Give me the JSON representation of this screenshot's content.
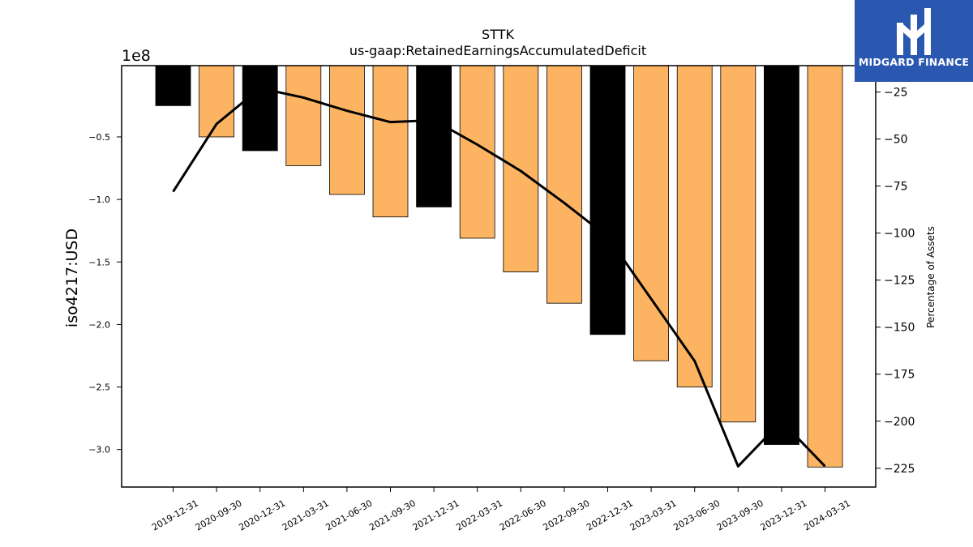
{
  "brand": {
    "name": "MIDGARD FINANCE",
    "logo_icon": "midgard-logo-icon",
    "background": "#2a58b0"
  },
  "chart_data": {
    "type": "bar",
    "title": "STTK",
    "subtitle": "us-gaap:RetainedEarningsAccumulatedDeficit",
    "ylabel": "iso4217:USD",
    "y_scale_label": "1e8",
    "y2label": "Percentage of Assets",
    "categories": [
      "2019-12-31",
      "2020-09-30",
      "2020-12-31",
      "2021-03-31",
      "2021-06-30",
      "2021-09-30",
      "2021-12-31",
      "2022-03-31",
      "2022-06-30",
      "2022-09-30",
      "2022-12-31",
      "2023-03-31",
      "2023-06-30",
      "2023-09-30",
      "2023-12-31",
      "2024-03-31"
    ],
    "values": [
      -25000000,
      -50000000,
      -61000000,
      -73000000,
      -96000000,
      -114000000,
      -106000000,
      -131000000,
      -158000000,
      -183000000,
      -208000000,
      -229000000,
      -250000000,
      -278000000,
      -296000000,
      -314000000
    ],
    "bar_colors": [
      "#000000",
      "#fdb462",
      "#000000",
      "#fdb462",
      "#fdb462",
      "#fdb462",
      "#000000",
      "#fdb462",
      "#fdb462",
      "#fdb462",
      "#000000",
      "#fdb462",
      "#fdb462",
      "#fdb462",
      "#000000",
      "#fdb462"
    ],
    "line_series": {
      "values": [
        -78,
        -42,
        -23,
        -28,
        -35,
        -41,
        -40,
        -53,
        -67,
        -84,
        -102,
        -135,
        -168,
        -224,
        -200,
        -224
      ],
      "color": "#000000"
    },
    "ylim": [
      -330000000,
      7000000
    ],
    "yticks": [
      -300000000,
      -250000000,
      -200000000,
      -150000000,
      -100000000,
      -50000000
    ],
    "ytick_labels": [
      "−3.0",
      "−2.5",
      "−2.0",
      "−1.5",
      "−1.0",
      "−0.5"
    ],
    "y2lim": [
      -235,
      -11
    ],
    "y2ticks": [
      -225,
      -200,
      -175,
      -150,
      -125,
      -100,
      -75,
      -50,
      -25
    ],
    "y2tick_labels": [
      "−225",
      "−200",
      "−175",
      "−150",
      "−125",
      "−100",
      "−75",
      "−50",
      "−25"
    ],
    "grid": false
  }
}
